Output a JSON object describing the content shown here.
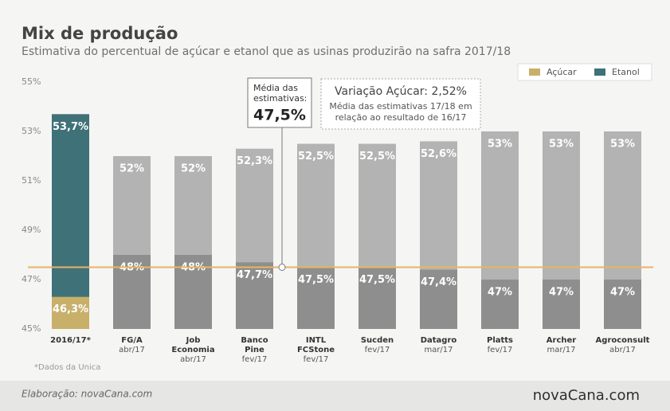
{
  "chart_data": {
    "type": "bar",
    "title": "Mix de produção",
    "subtitle": "Estimativa do percentual de açúcar e etanol que as usinas produzirão na safra 2017/18",
    "categories": [
      [
        "2016/17*"
      ],
      [
        "FG/A"
      ],
      [
        "Job",
        "Economia"
      ],
      [
        "Banco",
        "Pine"
      ],
      [
        "INTL",
        "FCStone"
      ],
      [
        "Sucden"
      ],
      [
        "Datagro"
      ],
      [
        "Platts"
      ],
      [
        "Archer"
      ],
      [
        "Agroconsult"
      ]
    ],
    "dates": [
      null,
      "abr/17",
      "abr/17",
      "fev/17",
      "fev/17",
      "fev/17",
      "mar/17",
      "fev/17",
      "mar/17",
      "abr/17"
    ],
    "series": [
      {
        "name": "Etanol",
        "color": "#3f7178",
        "colors": [
          "#3f7178",
          "#b3b3b3",
          "#b3b3b3",
          "#b3b3b3",
          "#b3b3b3",
          "#b3b3b3",
          "#b3b3b3",
          "#b3b3b3",
          "#b3b3b3",
          "#b3b3b3"
        ],
        "values": [
          53.7,
          52,
          52,
          52.3,
          52.5,
          52.5,
          52.6,
          53,
          53,
          53
        ],
        "value_labels": [
          "53,7%",
          "52%",
          "52%",
          "52,3%",
          "52,5%",
          "52,5%",
          "52,6%",
          "53%",
          "53%",
          "53%"
        ]
      },
      {
        "name": "Açúcar",
        "color": "#c8b06b",
        "colors": [
          "#c8b06b",
          "#8e8e8e",
          "#8e8e8e",
          "#8e8e8e",
          "#8e8e8e",
          "#8e8e8e",
          "#8e8e8e",
          "#8e8e8e",
          "#8e8e8e",
          "#8e8e8e"
        ],
        "values": [
          46.3,
          48,
          48,
          47.7,
          47.5,
          47.5,
          47.4,
          47,
          47,
          47
        ],
        "value_labels": [
          "46,3%",
          "48%",
          "48%",
          "47,7%",
          "47,5%",
          "47,5%",
          "47,4%",
          "47%",
          "47%",
          "47%"
        ]
      }
    ],
    "ylim": [
      45,
      55
    ],
    "yticks": [
      {
        "value": 45,
        "label": "45%"
      },
      {
        "value": 47,
        "label": "47%"
      },
      {
        "value": 49,
        "label": "49%"
      },
      {
        "value": 51,
        "label": "51%"
      },
      {
        "value": 53,
        "label": "53%"
      },
      {
        "value": 55,
        "label": "55%"
      }
    ],
    "reference_line": {
      "value": 47.5,
      "label": "47,5%",
      "caption": [
        "Média das",
        "estimativas:"
      ],
      "color": "#e8b465"
    },
    "annotation": {
      "title": "Variação Açúcar: 2,52%",
      "text": [
        "Média das estimativas 17/18 em",
        "relação ao resultado de 16/17"
      ]
    },
    "footnote": "*Dados da Unica",
    "credit": "Elaboração: novaCana.com",
    "logo": "novaCana.com"
  }
}
